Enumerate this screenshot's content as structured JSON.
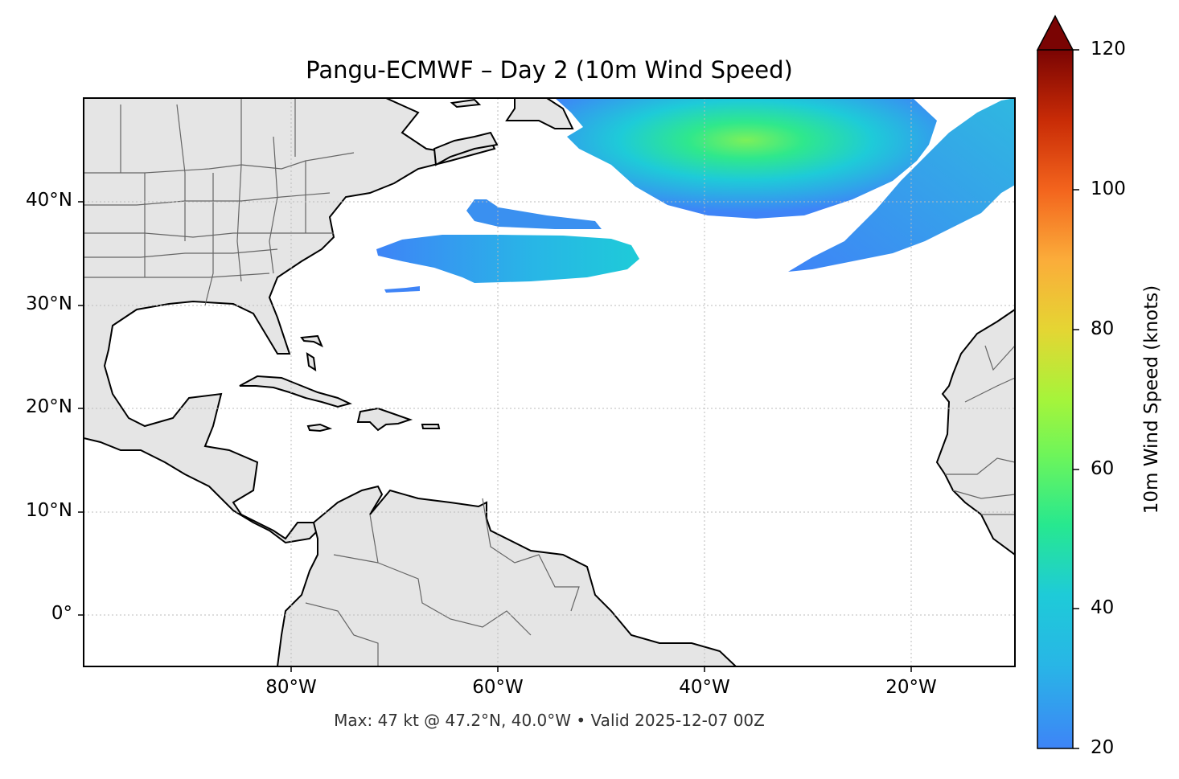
{
  "title": "Pangu-ECMWF – Day 2 (10m Wind Speed)",
  "subtitle": "Max: 47 kt @ 47.2°N, 40.0°W • Valid 2025-12-07 00Z",
  "map": {
    "lon_range": [
      -100,
      -10
    ],
    "lat_range": [
      -5,
      50
    ],
    "lat_ticks": [
      "40°N",
      "30°N",
      "20°N",
      "10°N",
      "0°"
    ],
    "lon_ticks": [
      "80°W",
      "60°W",
      "40°W",
      "20°W"
    ],
    "gridlines": true,
    "land_color": "#e5e5e5",
    "coast_color": "#000000",
    "border_color": "#666666"
  },
  "colorbar": {
    "label": "10m Wind Speed (knots)",
    "min": 20,
    "max": 120,
    "extend": "max",
    "ticks": [
      "20",
      "40",
      "60",
      "80",
      "100",
      "120"
    ],
    "colormap": "turbo-like",
    "stops": [
      "#3e84f7",
      "#1ecbd8",
      "#27e88f",
      "#a6f43a",
      "#e5d533",
      "#fbac3a",
      "#f3641d",
      "#c82b06",
      "#7a0403"
    ]
  },
  "chart_data": {
    "type": "heatmap",
    "variable": "10m Wind Speed",
    "units": "knots",
    "max_value": 47,
    "max_location": {
      "lat": 47.2,
      "lon": -40.0
    },
    "valid_time": "2025-12-07 00Z",
    "wind_regions": [
      {
        "name": "central-north-atlantic-jet",
        "approx_center": {
          "lat": 45.5,
          "lon": -38
        },
        "approx_max_kt": 47
      },
      {
        "name": "northeast-atlantic-band",
        "approx_center": {
          "lat": 42,
          "lon": -20
        },
        "approx_max_kt": 28
      },
      {
        "name": "subtropical-band-south",
        "approx_center": {
          "lat": 35,
          "lon": -60
        },
        "approx_max_kt": 30
      },
      {
        "name": "subtropical-band-north",
        "approx_center": {
          "lat": 39,
          "lon": -63
        },
        "approx_max_kt": 24
      }
    ]
  }
}
